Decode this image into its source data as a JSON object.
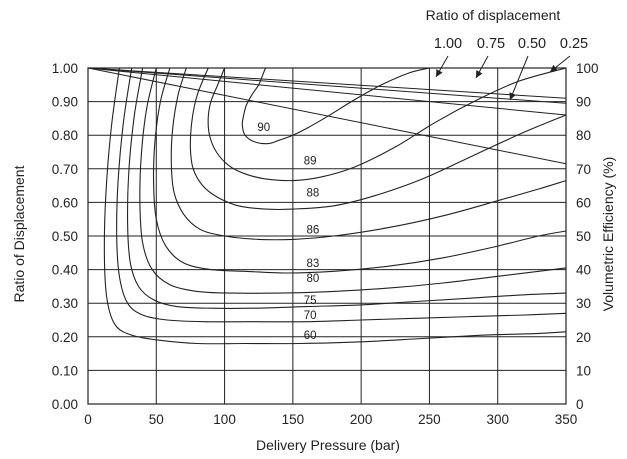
{
  "chart_data": {
    "type": "line",
    "title": "",
    "xlabel": "Delivery Pressure (bar)",
    "ylabel": "Ratio of Displacement",
    "y2label": "Volumetric Efficiency (%)",
    "xlim": [
      0,
      350
    ],
    "ylim": [
      0,
      1
    ],
    "y2lim": [
      0,
      100
    ],
    "grid": true,
    "x_ticks": [
      "0",
      "50",
      "100",
      "150",
      "200",
      "250",
      "300",
      "350"
    ],
    "y_ticks": [
      "0.00",
      "0.10",
      "0.20",
      "0.30",
      "0.40",
      "0.50",
      "0.60",
      "0.70",
      "0.80",
      "0.90",
      "1.00"
    ],
    "y2_ticks": [
      "0",
      "10",
      "20",
      "30",
      "40",
      "50",
      "60",
      "70",
      "80",
      "90",
      "100"
    ],
    "legend": {
      "title": "Ratio of displacement",
      "entries": [
        "1.00",
        "0.75",
        "0.50",
        "0.25"
      ],
      "placement": "top-right"
    },
    "efficiency_lines": [
      {
        "ratio": "1.00",
        "x": [
          0,
          350
        ],
        "y2": [
          100,
          91
        ]
      },
      {
        "ratio": "0.75",
        "x": [
          0,
          350
        ],
        "y2": [
          100,
          89.5
        ]
      },
      {
        "ratio": "0.50",
        "x": [
          0,
          350
        ],
        "y2": [
          100,
          86
        ]
      },
      {
        "ratio": "0.25",
        "x": [
          0,
          350
        ],
        "y2": [
          100,
          71.5
        ]
      }
    ],
    "contours": [
      {
        "label": "90",
        "label_at": [
          124,
          0.825
        ],
        "x": [
          130,
          128,
          125,
          120,
          116,
          114,
          113,
          115,
          122,
          132,
          140,
          150,
          160,
          175,
          195,
          215,
          235,
          250
        ],
        "y": [
          1.0,
          0.98,
          0.95,
          0.92,
          0.89,
          0.86,
          0.83,
          0.8,
          0.78,
          0.775,
          0.785,
          0.8,
          0.82,
          0.855,
          0.905,
          0.95,
          0.985,
          1.0
        ]
      },
      {
        "label": "89",
        "label_at": [
          158,
          0.725
        ],
        "x": [
          100,
          95,
          90,
          88,
          89,
          94,
          103,
          115,
          130,
          150,
          170,
          195,
          225,
          255,
          285,
          315,
          350
        ],
        "y": [
          1.0,
          0.95,
          0.9,
          0.85,
          0.8,
          0.75,
          0.71,
          0.685,
          0.67,
          0.665,
          0.675,
          0.705,
          0.765,
          0.84,
          0.905,
          0.96,
          1.0
        ]
      },
      {
        "label": "88",
        "label_at": [
          160,
          0.63
        ],
        "x": [
          88,
          80,
          76,
          75,
          77,
          84,
          95,
          110,
          130,
          150,
          180,
          210,
          245,
          285,
          320,
          350
        ],
        "y": [
          1.0,
          0.92,
          0.84,
          0.76,
          0.7,
          0.65,
          0.615,
          0.59,
          0.58,
          0.58,
          0.59,
          0.62,
          0.67,
          0.745,
          0.81,
          0.86
        ]
      },
      {
        "label": "86",
        "label_at": [
          160,
          0.52
        ],
        "x": [
          72,
          66,
          62,
          61,
          63,
          70,
          82,
          100,
          125,
          150,
          180,
          220,
          260,
          300,
          330,
          350
        ],
        "y": [
          1.0,
          0.92,
          0.82,
          0.72,
          0.63,
          0.565,
          0.52,
          0.5,
          0.49,
          0.49,
          0.5,
          0.525,
          0.56,
          0.605,
          0.64,
          0.665
        ]
      },
      {
        "label": "83",
        "label_at": [
          160,
          0.42
        ],
        "x": [
          60,
          53,
          49,
          48,
          50,
          57,
          70,
          90,
          115,
          145,
          180,
          220,
          260,
          300,
          330,
          350
        ],
        "y": [
          1.0,
          0.9,
          0.78,
          0.66,
          0.55,
          0.47,
          0.42,
          0.4,
          0.395,
          0.39,
          0.395,
          0.41,
          0.435,
          0.47,
          0.5,
          0.515
        ]
      },
      {
        "label": "80",
        "label_at": [
          160,
          0.375
        ],
        "x": [
          50,
          43,
          39,
          38,
          40,
          47,
          60,
          80,
          105,
          140,
          180,
          220,
          260,
          300,
          330,
          350
        ],
        "y": [
          1.0,
          0.88,
          0.74,
          0.6,
          0.48,
          0.4,
          0.355,
          0.335,
          0.33,
          0.33,
          0.335,
          0.345,
          0.36,
          0.38,
          0.395,
          0.405
        ]
      },
      {
        "label": "75",
        "label_at": [
          158,
          0.31
        ],
        "x": [
          40,
          34,
          30,
          29,
          31,
          37,
          48,
          65,
          90,
          120,
          160,
          200,
          240,
          280,
          320,
          350
        ],
        "y": [
          1.0,
          0.86,
          0.7,
          0.54,
          0.42,
          0.35,
          0.31,
          0.29,
          0.285,
          0.285,
          0.29,
          0.295,
          0.305,
          0.315,
          0.325,
          0.33
        ]
      },
      {
        "label": "70",
        "label_at": [
          158,
          0.265
        ],
        "x": [
          32,
          26,
          22,
          21,
          23,
          29,
          40,
          58,
          85,
          120,
          160,
          200,
          240,
          280,
          320,
          350
        ],
        "y": [
          1.0,
          0.84,
          0.66,
          0.5,
          0.38,
          0.3,
          0.265,
          0.25,
          0.245,
          0.245,
          0.245,
          0.25,
          0.255,
          0.26,
          0.265,
          0.27
        ]
      },
      {
        "label": "60",
        "label_at": [
          158,
          0.205
        ],
        "x": [
          23,
          17,
          13,
          12,
          14,
          20,
          32,
          52,
          80,
          115,
          155,
          200,
          245,
          290,
          330,
          350
        ],
        "y": [
          1.0,
          0.82,
          0.62,
          0.44,
          0.31,
          0.235,
          0.205,
          0.19,
          0.18,
          0.18,
          0.18,
          0.185,
          0.195,
          0.205,
          0.21,
          0.215
        ]
      }
    ]
  }
}
